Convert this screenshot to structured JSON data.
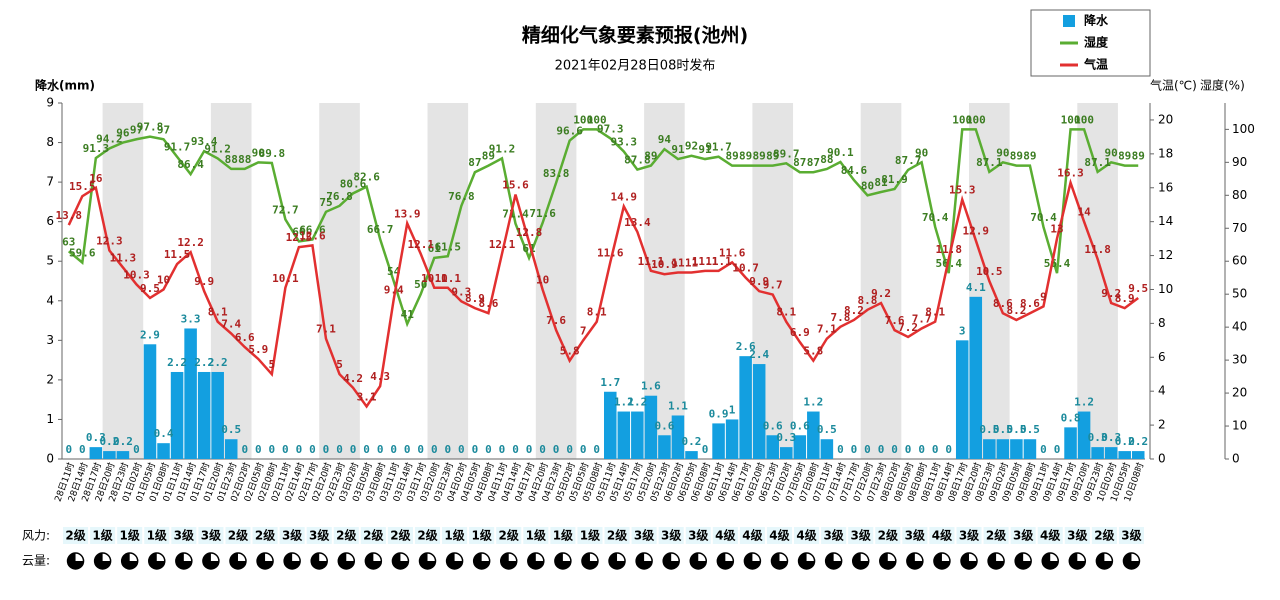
{
  "chart_data": {
    "type": "combo",
    "title": "精细化气象要素预报(池州)",
    "subtitle": "2021年02月28日08时发布",
    "y_label": "降水(mm)",
    "y2_label": "气温(℃)",
    "y3_label": "湿度(%)",
    "categories": [
      "28日11时",
      "28日14时",
      "28日17时",
      "28日20时",
      "28日23时",
      "01日02时",
      "01日05时",
      "01日08时",
      "01日11时",
      "01日14时",
      "01日17时",
      "01日20时",
      "01日23时",
      "02日02时",
      "02日05时",
      "02日08时",
      "02日11时",
      "02日14时",
      "02日17时",
      "02日20时",
      "02日23时",
      "03日02时",
      "03日05时",
      "03日08时",
      "03日11时",
      "03日14时",
      "03日17时",
      "03日20时",
      "03日23时",
      "04日02时",
      "04日05时",
      "04日08时",
      "04日11时",
      "04日14时",
      "04日17时",
      "04日20时",
      "04日23时",
      "05日02时",
      "05日05时",
      "05日08时",
      "05日11时",
      "05日14时",
      "05日17时",
      "05日20时",
      "05日23时",
      "06日02时",
      "06日05时",
      "06日08时",
      "06日11时",
      "06日14时",
      "06日17时",
      "06日20时",
      "06日23时",
      "07日02时",
      "07日05时",
      "07日08时",
      "07日11时",
      "07日14时",
      "07日17时",
      "07日20时",
      "07日23时",
      "08日02时",
      "08日05时",
      "08日08时",
      "08日11时",
      "08日14时",
      "08日17时",
      "08日20时",
      "08日23时",
      "09日02时",
      "09日05时",
      "09日08时",
      "09日11时",
      "09日14时",
      "09日17时",
      "09日20时",
      "09日23时",
      "10日02时",
      "10日05时",
      "10日08时"
    ],
    "series": [
      {
        "name": "降水",
        "color": "#139fe0",
        "axis": "y",
        "values": [
          0,
          0,
          0.3,
          0.2,
          0.2,
          0,
          2.9,
          0.4,
          2.2,
          3.3,
          2.2,
          2.2,
          0.5,
          0,
          0,
          0,
          0,
          0,
          0,
          0,
          0,
          0,
          0,
          0,
          0,
          0,
          0,
          0,
          0,
          0,
          0,
          0,
          0,
          0,
          0,
          0,
          0,
          0,
          0,
          0,
          1.7,
          1.2,
          1.2,
          1.6,
          0.6,
          1.1,
          0.2,
          0,
          0.9,
          1,
          2.6,
          2.4,
          0.6,
          0.3,
          0.6,
          1.2,
          0.5,
          0,
          0,
          0,
          0,
          0,
          0,
          0,
          0,
          0,
          3,
          4.1,
          0.5,
          0.5,
          0.5,
          0.5,
          0,
          0,
          0.8,
          1.2,
          0.3,
          0.3,
          0.2,
          0.2
        ]
      },
      {
        "name": "湿度",
        "color": "#5aad32",
        "axis": "y3",
        "values": [
          63,
          59.6,
          91.3,
          94.2,
          96,
          97,
          97.8,
          97,
          91.7,
          86.4,
          93.4,
          91.2,
          88,
          88,
          90,
          89.8,
          72.7,
          66,
          66.6,
          75,
          76.8,
          80.6,
          82.6,
          66.7,
          54,
          41,
          50,
          61,
          61.5,
          76.8,
          87,
          89,
          91.2,
          71.4,
          61,
          71.6,
          83.8,
          96.6,
          100,
          100,
          97.3,
          93.3,
          87.8,
          89,
          94,
          91,
          92,
          91,
          91.7,
          89,
          89,
          89,
          89,
          89.7,
          87,
          87,
          88,
          90.1,
          84.6,
          80,
          81,
          81.9,
          87.7,
          90,
          70.4,
          56.4,
          100,
          100,
          87.1,
          90,
          89,
          89,
          70.4,
          56.4,
          100,
          100,
          87.1,
          90,
          89,
          89
        ]
      },
      {
        "name": "气温",
        "color": "#e23030",
        "axis": "y2",
        "values": [
          13.8,
          15.5,
          16,
          12.3,
          11.3,
          10.3,
          9.5,
          10,
          11.5,
          12.2,
          9.9,
          8.1,
          7.4,
          6.6,
          5.9,
          5,
          10.1,
          12.5,
          12.6,
          7.1,
          5,
          4.2,
          3.1,
          4.3,
          9.4,
          13.9,
          12.1,
          10.1,
          10.1,
          9.3,
          8.9,
          8.6,
          12.1,
          15.6,
          12.8,
          10,
          7.6,
          5.8,
          7,
          8.1,
          11.6,
          14.9,
          13.4,
          11.1,
          10.9,
          11,
          11,
          11.1,
          11.1,
          11.6,
          10.7,
          9.9,
          9.7,
          8.1,
          6.9,
          5.8,
          7.1,
          7.8,
          8.2,
          8.8,
          9.2,
          7.6,
          7.2,
          7.7,
          8.1,
          11.8,
          15.3,
          12.9,
          10.5,
          8.6,
          8.2,
          8.6,
          9,
          13,
          16.3,
          14,
          11.8,
          9.2,
          8.9,
          9.5
        ]
      }
    ],
    "ylim": [
      0,
      9
    ],
    "yticks": [
      0,
      1,
      2,
      3,
      4,
      5,
      6,
      7,
      8,
      9
    ],
    "y2lim": [
      0,
      21
    ],
    "y2ticks": [
      0,
      2,
      4,
      6,
      8,
      10,
      12,
      14,
      16,
      18,
      20
    ],
    "y3lim": [
      0,
      108
    ],
    "y3ticks": [
      0,
      10,
      20,
      30,
      40,
      50,
      60,
      70,
      80,
      90,
      100
    ],
    "wind_label": "风力:",
    "cloud_label": "云量:",
    "wind": [
      "2级",
      "1级",
      "1级",
      "1级",
      "3级",
      "3级",
      "2级",
      "2级",
      "3级",
      "3级",
      "2级",
      "2级",
      "2级",
      "2级",
      "1级",
      "1级",
      "2级",
      "1级",
      "1级",
      "1级",
      "2级",
      "3级",
      "3级",
      "3级",
      "4级",
      "4级",
      "4级",
      "4级",
      "3级",
      "3级",
      "2级",
      "3级",
      "4级",
      "3级",
      "2级",
      "3级",
      "4级",
      "3级",
      "2级",
      "3级"
    ]
  }
}
